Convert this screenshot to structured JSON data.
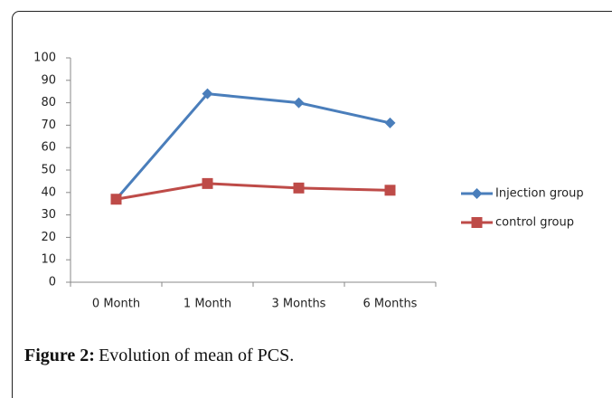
{
  "chart_data": {
    "type": "line",
    "categories": [
      "0 Month",
      "1 Month",
      "3 Months",
      "6 Months"
    ],
    "series": [
      {
        "name": "Injection group",
        "color": "#4a7ebb",
        "marker": "diamond",
        "values": [
          37,
          84,
          80,
          71
        ]
      },
      {
        "name": "control group",
        "color": "#be4b48",
        "marker": "square",
        "values": [
          37,
          44,
          42,
          41
        ]
      }
    ],
    "ylim": [
      0,
      100
    ],
    "yticks": [
      0,
      10,
      20,
      30,
      40,
      50,
      60,
      70,
      80,
      90,
      100
    ],
    "grid": false,
    "legend": "right",
    "caption": {
      "label": "Figure 2:",
      "text": "Evolution of mean of PCS."
    }
  }
}
